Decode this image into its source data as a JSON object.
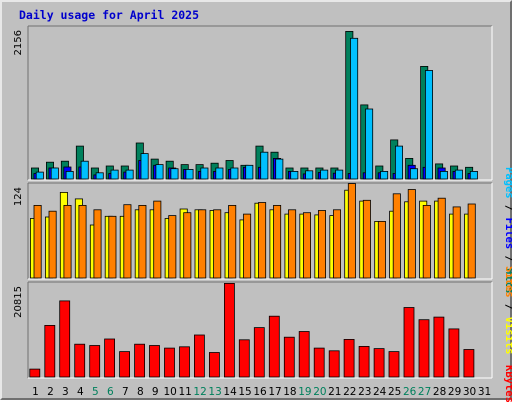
{
  "title": "Daily usage for April 2025",
  "colors": {
    "hits": "#00805c",
    "files": "#0000ff",
    "pages": "#00c0ff",
    "visits": "#ffff00",
    "sites": "#ff8000",
    "kbytes": "#ff0000",
    "weekday_label": "#000000",
    "weekend_label": "#00805c"
  },
  "chart_data": [
    {
      "type": "bar",
      "title": "Daily usage for April 2025",
      "categories": [
        "1",
        "2",
        "3",
        "4",
        "5",
        "6",
        "7",
        "8",
        "9",
        "10",
        "11",
        "12",
        "13",
        "14",
        "15",
        "16",
        "17",
        "18",
        "19",
        "20",
        "21",
        "22",
        "23",
        "24",
        "25",
        "26",
        "27",
        "28",
        "29",
        "30",
        "31"
      ],
      "weekend_days": [
        "5",
        "6",
        "12",
        "13",
        "19",
        "20",
        "26",
        "27"
      ],
      "ytick": "2156",
      "ylim": [
        0,
        2156
      ],
      "legend": [
        "Pages",
        "Files",
        "Hits"
      ],
      "series": [
        {
          "name": "Hits",
          "values": [
            160,
            245,
            260,
            480,
            160,
            190,
            190,
            525,
            290,
            260,
            210,
            210,
            230,
            270,
            200,
            480,
            390,
            160,
            160,
            160,
            160,
            2150,
            1080,
            190,
            570,
            300,
            1640,
            220,
            190,
            170,
            0
          ]
        },
        {
          "name": "Files",
          "values": [
            80,
            160,
            175,
            175,
            60,
            80,
            100,
            270,
            200,
            160,
            140,
            110,
            110,
            140,
            170,
            170,
            300,
            110,
            75,
            95,
            85,
            80,
            90,
            90,
            80,
            200,
            170,
            160,
            110,
            80,
            0
          ]
        },
        {
          "name": "Pages",
          "values": [
            100,
            160,
            110,
            260,
            90,
            130,
            130,
            370,
            210,
            150,
            140,
            160,
            160,
            160,
            200,
            390,
            290,
            110,
            120,
            130,
            130,
            2050,
            1020,
            110,
            480,
            150,
            1580,
            110,
            130,
            110,
            0
          ]
        }
      ]
    },
    {
      "type": "bar",
      "categories": [
        "1",
        "2",
        "3",
        "4",
        "5",
        "6",
        "7",
        "8",
        "9",
        "10",
        "11",
        "12",
        "13",
        "14",
        "15",
        "16",
        "17",
        "18",
        "19",
        "20",
        "21",
        "22",
        "23",
        "24",
        "25",
        "26",
        "27",
        "28",
        "29",
        "30",
        "31"
      ],
      "ytick": "124",
      "ylim": [
        0,
        124
      ],
      "legend": [
        "Sites",
        "Visits"
      ],
      "series": [
        {
          "name": "Visits",
          "values": [
            82,
            84,
            118,
            109,
            73,
            85,
            85,
            94,
            94,
            82,
            95,
            94,
            93,
            90,
            80,
            103,
            94,
            88,
            88,
            87,
            86,
            121,
            106,
            78,
            92,
            105,
            106,
            106,
            88,
            88,
            0
          ]
        },
        {
          "name": "Sites",
          "values": [
            100,
            92,
            100,
            100,
            94,
            85,
            101,
            100,
            106,
            86,
            90,
            94,
            94,
            100,
            88,
            104,
            100,
            94,
            90,
            93,
            94,
            130,
            107,
            78,
            116,
            122,
            100,
            110,
            98,
            102,
            0
          ]
        }
      ]
    },
    {
      "type": "bar",
      "categories": [
        "1",
        "2",
        "3",
        "4",
        "5",
        "6",
        "7",
        "8",
        "9",
        "10",
        "11",
        "12",
        "13",
        "14",
        "15",
        "16",
        "17",
        "18",
        "19",
        "20",
        "21",
        "22",
        "23",
        "24",
        "25",
        "26",
        "27",
        "28",
        "29",
        "30",
        "31"
      ],
      "ytick": "20815",
      "ylim": [
        0,
        20815
      ],
      "legend": [
        "KBytes"
      ],
      "series": [
        {
          "name": "KBytes",
          "values": [
            1800,
            11800,
            17400,
            7500,
            7200,
            8700,
            5800,
            7500,
            7200,
            6600,
            6900,
            9600,
            5600,
            21400,
            8500,
            11300,
            13900,
            9100,
            10400,
            6600,
            6000,
            8600,
            7000,
            6500,
            5800,
            15900,
            13100,
            13700,
            11000,
            6300,
            0
          ]
        }
      ]
    }
  ]
}
